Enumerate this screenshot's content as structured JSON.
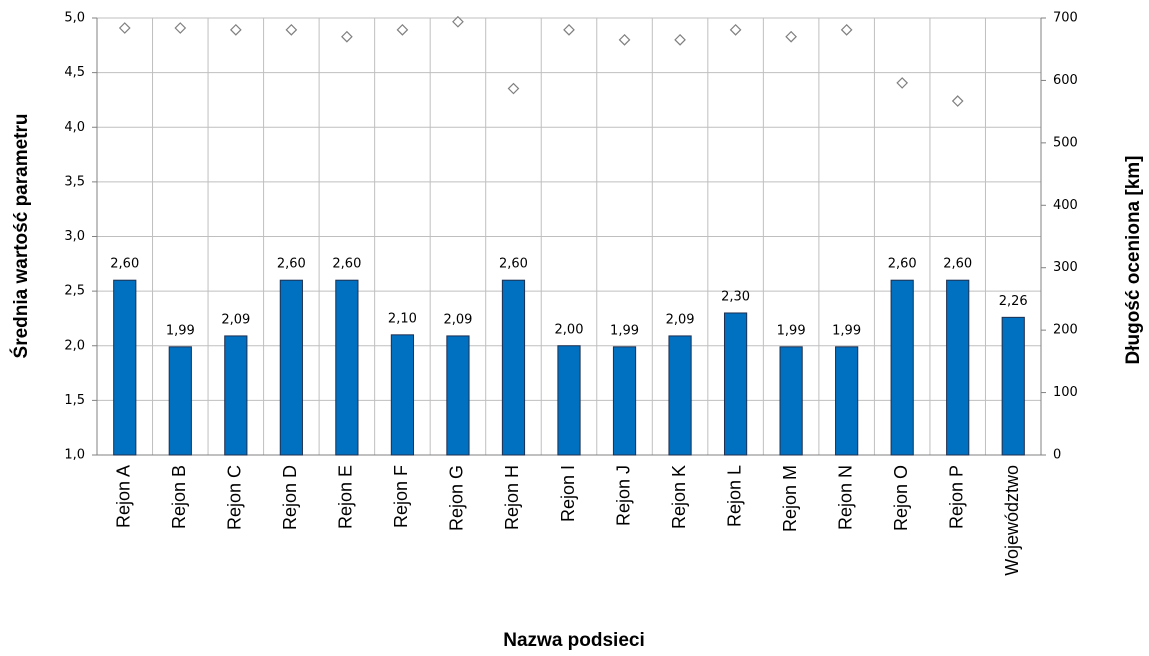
{
  "chart_data": {
    "type": "bar",
    "xlabel": "Nazwa podsieci",
    "ylabel": "Średnia wartość parametru",
    "y2label": "Długość oceniona [km]",
    "categories": [
      "Rejon A",
      "Rejon B",
      "Rejon C",
      "Rejon D",
      "Rejon E",
      "Rejon F",
      "Rejon G",
      "Rejon H",
      "Rejon I",
      "Rejon J",
      "Rejon K",
      "Rejon L",
      "Rejon M",
      "Rejon N",
      "Rejon O",
      "Rejon P",
      "Województwo"
    ],
    "series": [
      {
        "type": "bar",
        "color": "#0070c0",
        "values": [
          2.6,
          1.99,
          2.09,
          2.6,
          2.6,
          2.1,
          2.09,
          2.6,
          2.0,
          1.99,
          2.09,
          2.3,
          1.99,
          1.99,
          2.6,
          2.6,
          2.26
        ],
        "value_labels": [
          "2,60",
          "1,99",
          "2,09",
          "2,60",
          "2,60",
          "2,10",
          "2,09",
          "2,60",
          "2,00",
          "1,99",
          "2,09",
          "2,30",
          "1,99",
          "1,99",
          "2,60",
          "2,60",
          "2,26"
        ]
      },
      {
        "type": "scatter",
        "axis": "y2",
        "color": "#808080",
        "values": [
          684,
          684,
          681,
          681,
          670,
          681,
          694,
          587,
          681,
          665,
          665,
          681,
          670,
          681,
          596,
          567,
          null
        ]
      }
    ],
    "ylim": [
      1.0,
      5.0
    ],
    "yticks": [
      {
        "value": 1.0,
        "label": "1,0"
      },
      {
        "value": 1.5,
        "label": "1,5"
      },
      {
        "value": 2.0,
        "label": "2,0"
      },
      {
        "value": 2.5,
        "label": "2,5"
      },
      {
        "value": 3.0,
        "label": "3,0"
      },
      {
        "value": 3.5,
        "label": "3,5"
      },
      {
        "value": 4.0,
        "label": "4,0"
      },
      {
        "value": 4.5,
        "label": "4,5"
      },
      {
        "value": 5.0,
        "label": "5,0"
      }
    ],
    "y2lim": [
      0,
      700
    ],
    "y2ticks": [
      0,
      100,
      200,
      300,
      400,
      500,
      600,
      700
    ],
    "grid": true
  }
}
